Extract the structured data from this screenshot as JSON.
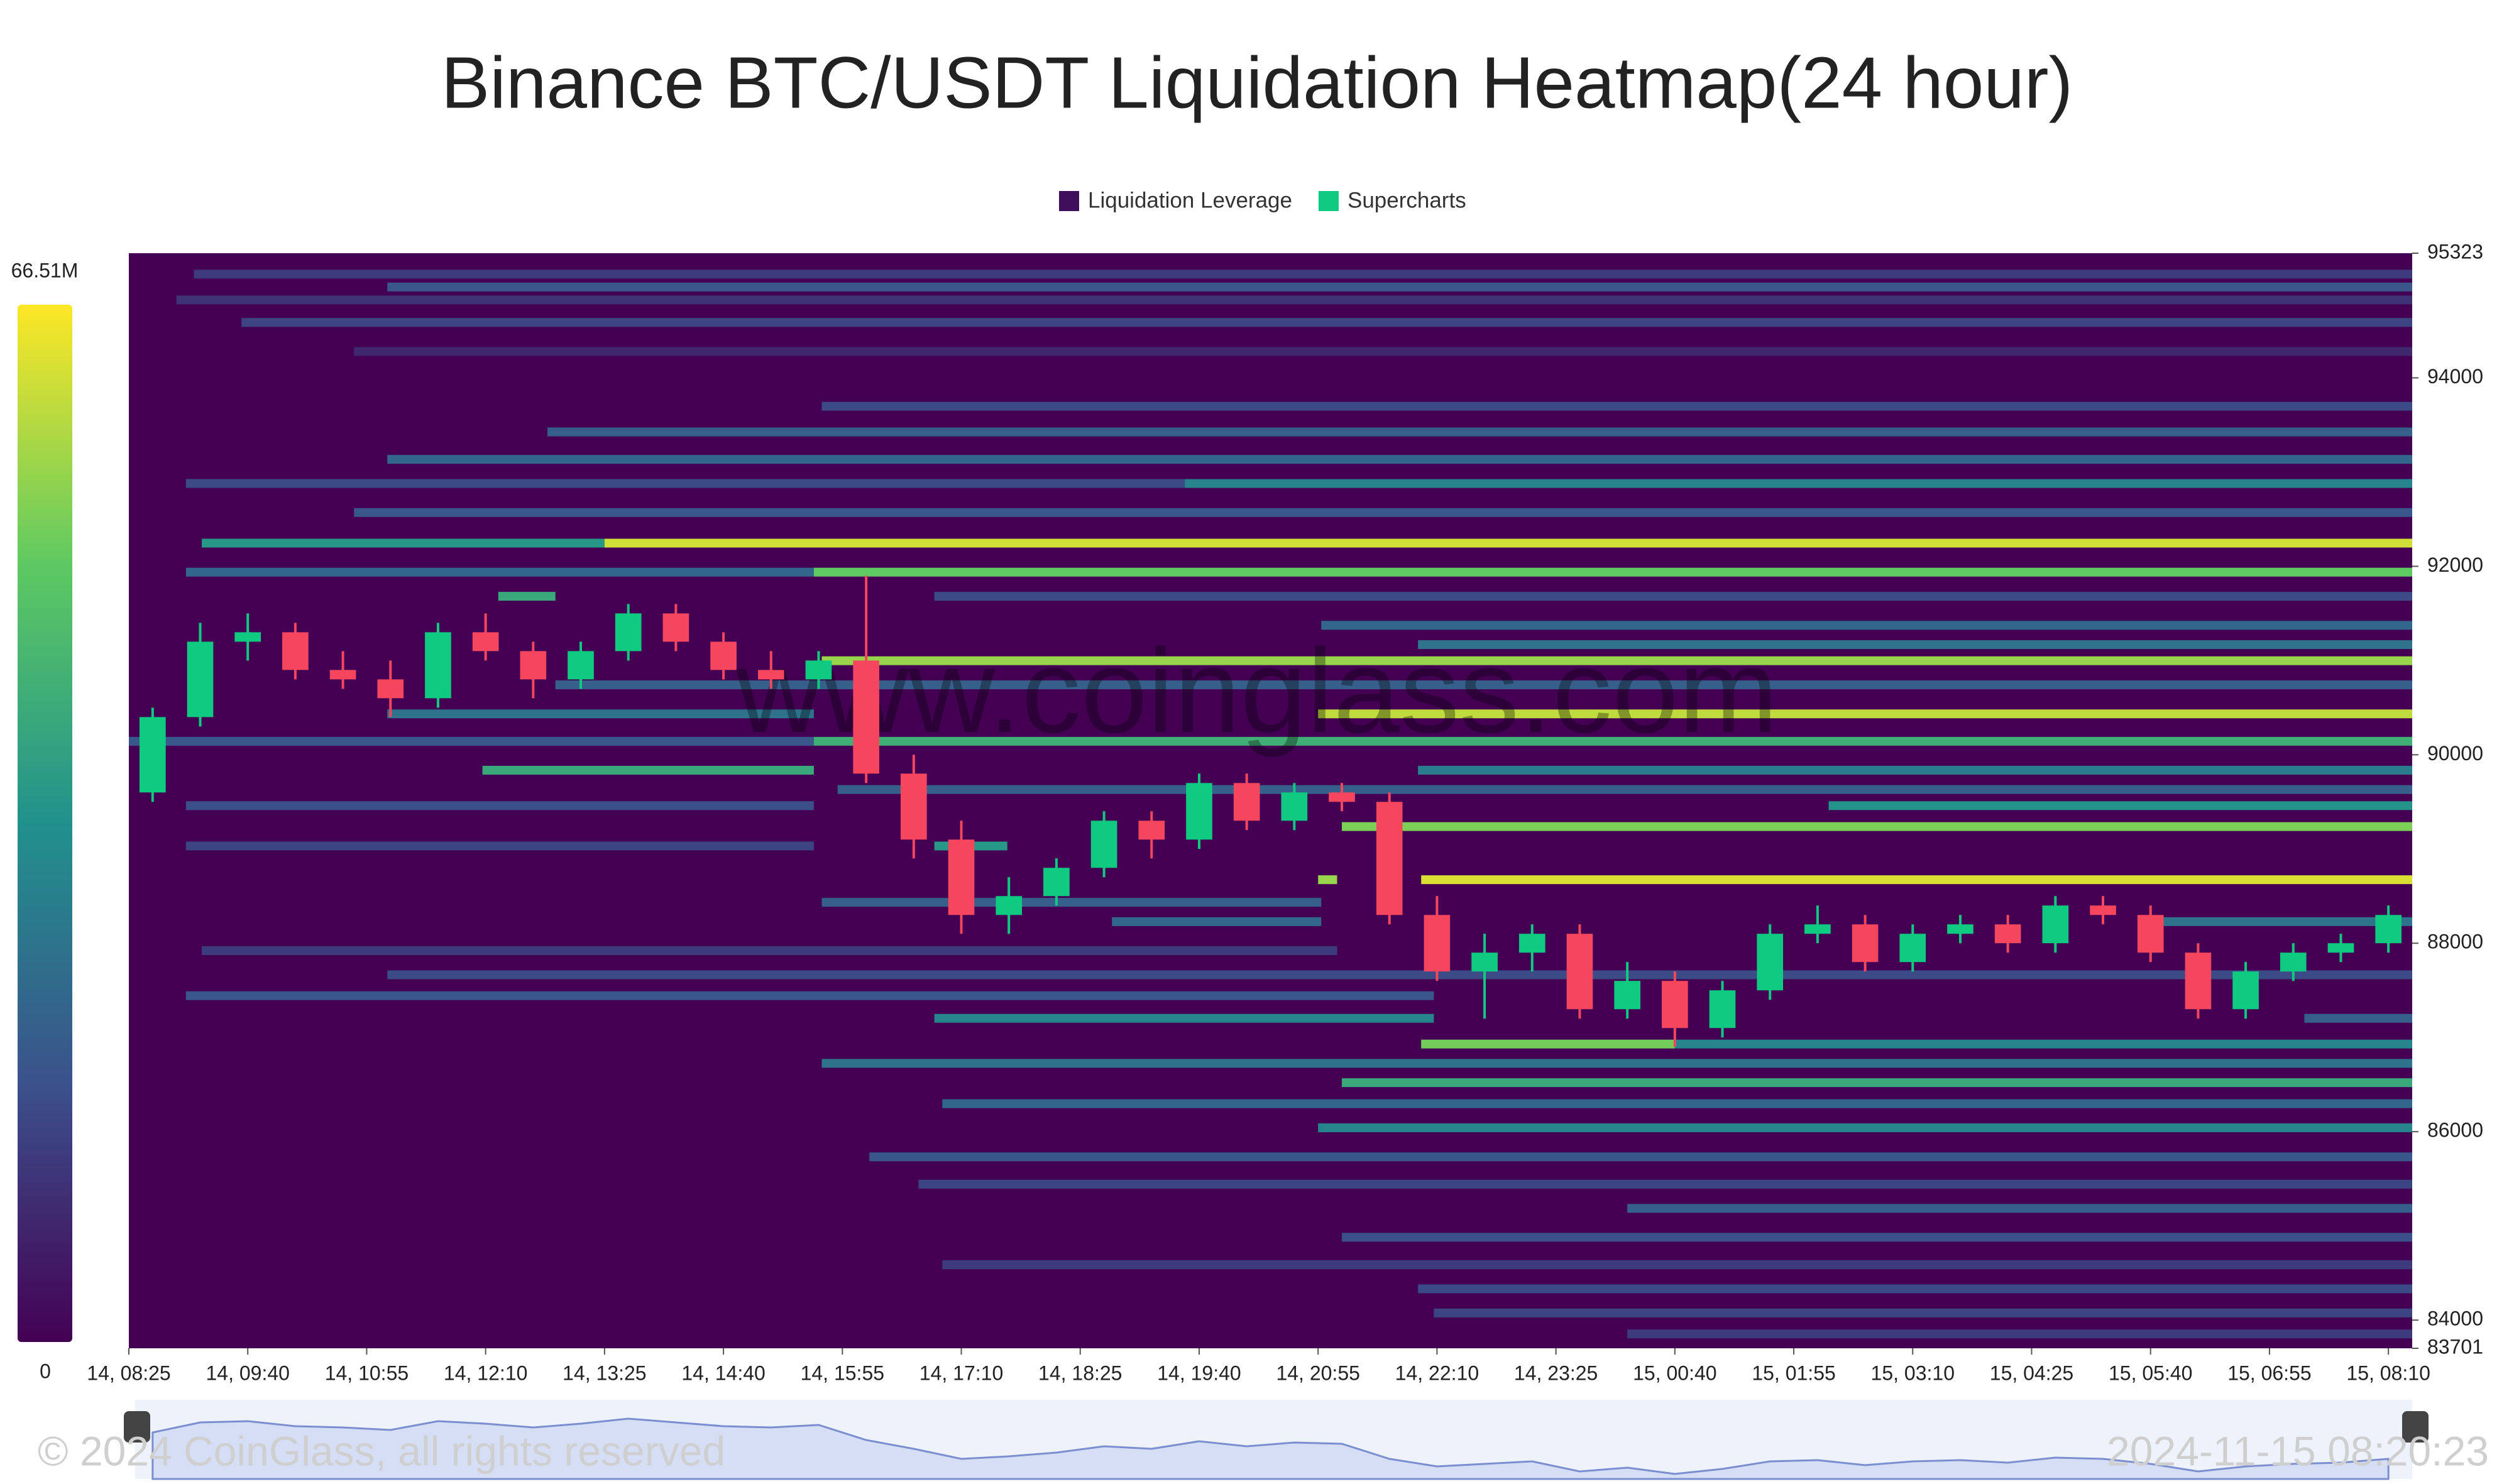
{
  "chart_data": {
    "type": "heatmap",
    "title": "Binance BTC/USDT Liquidation Heatmap(24 hour)",
    "series": [
      {
        "name": "Liquidation Leverage",
        "color": "#3f0f5c"
      },
      {
        "name": "Supercharts",
        "color": "#0ecb81"
      }
    ],
    "colorscale": [
      "#440154",
      "#3b528b",
      "#21918c",
      "#5ec962",
      "#fde725"
    ],
    "colorbar_ticks": [
      0,
      {
        "value": 66510000,
        "label": "66.51M"
      }
    ],
    "clim": [
      0,
      66510000
    ],
    "xlim": [
      0,
      1440
    ],
    "xticks": [
      {
        "value": 0,
        "label": "14, 08:25"
      },
      {
        "value": 75,
        "label": "14, 09:40"
      },
      {
        "value": 150,
        "label": "14, 10:55"
      },
      {
        "value": 225,
        "label": "14, 12:10"
      },
      {
        "value": 300,
        "label": "14, 13:25"
      },
      {
        "value": 375,
        "label": "14, 14:40"
      },
      {
        "value": 450,
        "label": "14, 15:55"
      },
      {
        "value": 525,
        "label": "14, 17:10"
      },
      {
        "value": 600,
        "label": "14, 18:25"
      },
      {
        "value": 675,
        "label": "14, 19:40"
      },
      {
        "value": 750,
        "label": "14, 20:55"
      },
      {
        "value": 825,
        "label": "14, 22:10"
      },
      {
        "value": 900,
        "label": "14, 23:25"
      },
      {
        "value": 975,
        "label": "15, 00:40"
      },
      {
        "value": 1050,
        "label": "15, 01:55"
      },
      {
        "value": 1125,
        "label": "15, 03:10"
      },
      {
        "value": 1200,
        "label": "15, 04:25"
      },
      {
        "value": 1275,
        "label": "15, 05:40"
      },
      {
        "value": 1350,
        "label": "15, 06:55"
      },
      {
        "value": 1425,
        "label": "15, 08:10"
      }
    ],
    "ylim": [
      83701,
      95323
    ],
    "yticks": [
      83701,
      84000,
      86000,
      88000,
      90000,
      92000,
      94000,
      95323
    ],
    "bands": [
      {
        "price": 95101,
        "x0": 41,
        "x1": 1440,
        "value": 12000000
      },
      {
        "price": 94964,
        "x0": 163,
        "x1": 1440,
        "value": 18000000
      },
      {
        "price": 94827,
        "x0": 30,
        "x1": 1440,
        "value": 10000000
      },
      {
        "price": 94588,
        "x0": 71,
        "x1": 1440,
        "value": 14000000
      },
      {
        "price": 94280,
        "x0": 142,
        "x1": 1440,
        "value": 8000000
      },
      {
        "price": 93699,
        "x0": 437,
        "x1": 1440,
        "value": 15000000
      },
      {
        "price": 93426,
        "x0": 264,
        "x1": 1440,
        "value": 20000000
      },
      {
        "price": 93135,
        "x0": 163,
        "x1": 1440,
        "value": 22000000
      },
      {
        "price": 92879,
        "x0": 36,
        "x1": 1440,
        "value": 15000000
      },
      {
        "price": 92879,
        "x0": 666,
        "x1": 1440,
        "value": 30000000
      },
      {
        "price": 92571,
        "x0": 142,
        "x1": 1440,
        "value": 18000000
      },
      {
        "price": 92246,
        "x0": 46,
        "x1": 300,
        "value": 35000000
      },
      {
        "price": 92246,
        "x0": 300,
        "x1": 1440,
        "value": 62000000
      },
      {
        "price": 91938,
        "x0": 36,
        "x1": 432,
        "value": 22000000
      },
      {
        "price": 91938,
        "x0": 432,
        "x1": 1440,
        "value": 50000000
      },
      {
        "price": 91682,
        "x0": 233,
        "x1": 269,
        "value": 40000000
      },
      {
        "price": 91682,
        "x0": 508,
        "x1": 1440,
        "value": 15000000
      },
      {
        "price": 91374,
        "x0": 752,
        "x1": 1440,
        "value": 22000000
      },
      {
        "price": 91169,
        "x0": 813,
        "x1": 1440,
        "value": 25000000
      },
      {
        "price": 90998,
        "x0": 437,
        "x1": 1440,
        "value": 56000000
      },
      {
        "price": 90742,
        "x0": 269,
        "x1": 1440,
        "value": 20000000
      },
      {
        "price": 90434,
        "x0": 163,
        "x1": 432,
        "value": 25000000
      },
      {
        "price": 90434,
        "x0": 750,
        "x1": 1440,
        "value": 60000000
      },
      {
        "price": 90143,
        "x0": 0,
        "x1": 432,
        "value": 18000000
      },
      {
        "price": 90143,
        "x0": 432,
        "x1": 1440,
        "value": 42000000
      },
      {
        "price": 89836,
        "x0": 223,
        "x1": 432,
        "value": 40000000
      },
      {
        "price": 89836,
        "x0": 813,
        "x1": 1440,
        "value": 28000000
      },
      {
        "price": 89631,
        "x0": 447,
        "x1": 1440,
        "value": 20000000
      },
      {
        "price": 89460,
        "x0": 36,
        "x1": 432,
        "value": 16000000
      },
      {
        "price": 89460,
        "x0": 1072,
        "x1": 1440,
        "value": 34000000
      },
      {
        "price": 89238,
        "x0": 765,
        "x1": 1440,
        "value": 53000000
      },
      {
        "price": 89032,
        "x0": 36,
        "x1": 432,
        "value": 14000000
      },
      {
        "price": 89032,
        "x0": 508,
        "x1": 554,
        "value": 35000000
      },
      {
        "price": 88674,
        "x0": 750,
        "x1": 762,
        "value": 56000000
      },
      {
        "price": 88674,
        "x0": 815,
        "x1": 1440,
        "value": 63000000
      },
      {
        "price": 88434,
        "x0": 437,
        "x1": 752,
        "value": 20000000
      },
      {
        "price": 88229,
        "x0": 620,
        "x1": 752,
        "value": 22000000
      },
      {
        "price": 88229,
        "x0": 1280,
        "x1": 1440,
        "value": 25000000
      },
      {
        "price": 87921,
        "x0": 46,
        "x1": 762,
        "value": 12000000
      },
      {
        "price": 87665,
        "x0": 163,
        "x1": 1440,
        "value": 15000000
      },
      {
        "price": 87443,
        "x0": 36,
        "x1": 823,
        "value": 18000000
      },
      {
        "price": 87203,
        "x0": 508,
        "x1": 823,
        "value": 30000000
      },
      {
        "price": 87203,
        "x0": 1372,
        "x1": 1440,
        "value": 20000000
      },
      {
        "price": 86930,
        "x0": 815,
        "x1": 975,
        "value": 52000000
      },
      {
        "price": 86930,
        "x0": 975,
        "x1": 1440,
        "value": 30000000
      },
      {
        "price": 86725,
        "x0": 437,
        "x1": 1440,
        "value": 25000000
      },
      {
        "price": 86520,
        "x0": 765,
        "x1": 1440,
        "value": 40000000
      },
      {
        "price": 86297,
        "x0": 513,
        "x1": 1440,
        "value": 22000000
      },
      {
        "price": 86041,
        "x0": 750,
        "x1": 1440,
        "value": 30000000
      },
      {
        "price": 85733,
        "x0": 467,
        "x1": 1440,
        "value": 18000000
      },
      {
        "price": 85443,
        "x0": 498,
        "x1": 1440,
        "value": 14000000
      },
      {
        "price": 85186,
        "x0": 945,
        "x1": 1440,
        "value": 20000000
      },
      {
        "price": 84879,
        "x0": 765,
        "x1": 1440,
        "value": 16000000
      },
      {
        "price": 84588,
        "x0": 513,
        "x1": 1440,
        "value": 12000000
      },
      {
        "price": 84332,
        "x0": 813,
        "x1": 1440,
        "value": 15000000
      },
      {
        "price": 84076,
        "x0": 823,
        "x1": 1440,
        "value": 14000000
      },
      {
        "price": 83853,
        "x0": 945,
        "x1": 1440,
        "value": 12000000
      }
    ],
    "candles": {
      "up_color": "#0ecb81",
      "down_color": "#f6465d",
      "x": [
        15,
        45,
        75,
        105,
        135,
        165,
        195,
        225,
        255,
        285,
        315,
        345,
        375,
        405,
        435,
        465,
        495,
        525,
        555,
        585,
        615,
        645,
        675,
        705,
        735,
        765,
        795,
        825,
        855,
        885,
        915,
        945,
        975,
        1005,
        1035,
        1065,
        1095,
        1125,
        1155,
        1185,
        1215,
        1245,
        1275,
        1305,
        1335,
        1365,
        1395,
        1425
      ],
      "open": [
        89600,
        90400,
        91200,
        91300,
        90900,
        90800,
        90600,
        91300,
        91100,
        90800,
        91100,
        91500,
        91200,
        90900,
        90800,
        91000,
        89800,
        89100,
        88300,
        88500,
        88800,
        89300,
        89100,
        89700,
        89300,
        89600,
        89500,
        88300,
        87700,
        87900,
        88100,
        87300,
        87600,
        87100,
        87500,
        88100,
        88200,
        87800,
        88100,
        88200,
        88000,
        88400,
        88300,
        87900,
        87300,
        87700,
        87900,
        88000
      ],
      "high": [
        90500,
        91400,
        91500,
        91400,
        91100,
        91000,
        91400,
        91500,
        91200,
        91200,
        91600,
        91600,
        91300,
        91100,
        91100,
        91900,
        90000,
        89300,
        88700,
        88900,
        89400,
        89400,
        89800,
        89800,
        89700,
        89700,
        89600,
        88500,
        88100,
        88200,
        88200,
        87800,
        87700,
        87600,
        88200,
        88400,
        88300,
        88200,
        88300,
        88300,
        88500,
        88500,
        88400,
        88000,
        87800,
        88000,
        88100,
        88400
      ],
      "low": [
        89500,
        90300,
        91000,
        90800,
        90700,
        90400,
        90500,
        91000,
        90600,
        90700,
        91000,
        91100,
        90800,
        90700,
        90700,
        89700,
        88900,
        88100,
        88100,
        88400,
        88700,
        88900,
        89000,
        89200,
        89200,
        89400,
        88200,
        87600,
        87200,
        87700,
        87200,
        87200,
        86900,
        87000,
        87400,
        88000,
        87700,
        87700,
        88000,
        87900,
        87900,
        88200,
        87800,
        87200,
        87200,
        87600,
        87800,
        87900
      ],
      "close": [
        90400,
        91200,
        91300,
        90900,
        90800,
        90600,
        91300,
        91100,
        90800,
        91100,
        91500,
        91200,
        90900,
        90800,
        91000,
        89800,
        89100,
        88300,
        88500,
        88800,
        89300,
        89100,
        89700,
        89300,
        89600,
        89500,
        88300,
        87700,
        87900,
        88100,
        87300,
        87600,
        87100,
        87500,
        88100,
        88200,
        87800,
        88100,
        88200,
        88000,
        88400,
        88300,
        87900,
        87300,
        87700,
        87900,
        88000,
        88300
      ]
    },
    "watermark": "www.coinglass.com",
    "copyright": "© 2024 CoinGlass, all rights reserved",
    "timestamp": "2024-11-15 08:20:23"
  }
}
